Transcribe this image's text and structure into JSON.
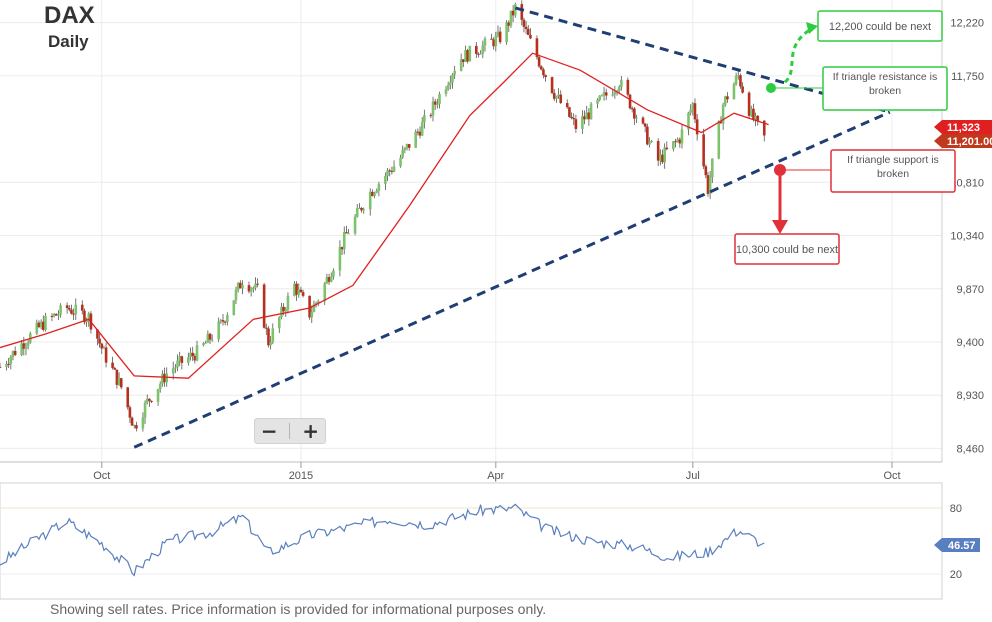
{
  "chart_data": [
    {
      "type": "candlestick",
      "title": "DAX",
      "subtitle": "Daily",
      "x_ticks": [
        "Oct",
        "2015",
        "Apr",
        "Jul",
        "Oct"
      ],
      "y_ticks": [
        8460,
        8930,
        9400,
        9870,
        10340,
        10810,
        11750,
        12220
      ],
      "y_tick_labels": [
        "8,460",
        "8,930",
        "9,400",
        "9,870",
        "10,340",
        "10,810",
        "11,750",
        "12,220"
      ],
      "ylim": [
        8340,
        12420
      ],
      "close_series": [
        [
          "2014-08-15",
          9180
        ],
        [
          "2014-08-25",
          9380
        ],
        [
          "2014-09-05",
          9580
        ],
        [
          "2014-09-15",
          9700
        ],
        [
          "2014-09-25",
          9620
        ],
        [
          "2014-10-02",
          9300
        ],
        [
          "2014-10-10",
          9000
        ],
        [
          "2014-10-16",
          8650
        ],
        [
          "2014-10-22",
          8870
        ],
        [
          "2014-11-01",
          9150
        ],
        [
          "2014-11-15",
          9320
        ],
        [
          "2014-11-25",
          9550
        ],
        [
          "2014-12-05",
          9950
        ],
        [
          "2014-12-12",
          9850
        ],
        [
          "2014-12-17",
          9400
        ],
        [
          "2014-12-29",
          9900
        ],
        [
          "2015-01-05",
          9650
        ],
        [
          "2015-01-10",
          9820
        ],
        [
          "2015-01-22",
          10350
        ],
        [
          "2015-02-01",
          10700
        ],
        [
          "2015-02-15",
          11000
        ],
        [
          "2015-03-01",
          11400
        ],
        [
          "2015-03-15",
          11900
        ],
        [
          "2015-03-25",
          12000
        ],
        [
          "2015-04-04",
          12100
        ],
        [
          "2015-04-10",
          12350
        ],
        [
          "2015-04-18",
          12000
        ],
        [
          "2015-04-28",
          11600
        ],
        [
          "2015-05-08",
          11300
        ],
        [
          "2015-05-18",
          11500
        ],
        [
          "2015-05-28",
          11700
        ],
        [
          "2015-06-05",
          11400
        ],
        [
          "2015-06-15",
          11000
        ],
        [
          "2015-06-25",
          11200
        ],
        [
          "2015-07-01",
          11500
        ],
        [
          "2015-07-08",
          10750
        ],
        [
          "2015-07-15",
          11500
        ],
        [
          "2015-07-22",
          11750
        ],
        [
          "2015-07-28",
          11400
        ],
        [
          "2015-08-03",
          11201
        ]
      ],
      "moving_average": [
        [
          "2014-08-15",
          9350
        ],
        [
          "2014-09-05",
          9470
        ],
        [
          "2014-09-25",
          9600
        ],
        [
          "2014-10-16",
          9100
        ],
        [
          "2014-11-10",
          9080
        ],
        [
          "2014-12-10",
          9600
        ],
        [
          "2015-01-05",
          9700
        ],
        [
          "2015-01-25",
          9900
        ],
        [
          "2015-02-20",
          10600
        ],
        [
          "2015-03-20",
          11400
        ],
        [
          "2015-04-05",
          11700
        ],
        [
          "2015-04-18",
          11950
        ],
        [
          "2015-05-10",
          11800
        ],
        [
          "2015-06-10",
          11450
        ],
        [
          "2015-07-05",
          11250
        ],
        [
          "2015-07-20",
          11420
        ],
        [
          "2015-08-05",
          11320
        ]
      ],
      "trendlines": [
        {
          "name": "resistance",
          "from": [
            "2015-04-10",
            12350
          ],
          "to": [
            "2015-09-30",
            11430
          ]
        },
        {
          "name": "support",
          "from": [
            "2014-10-16",
            8470
          ],
          "to": [
            "2015-09-30",
            11430
          ]
        }
      ],
      "price_labels": [
        {
          "text": "11,323",
          "value": 11323,
          "color": "#e02020"
        },
        {
          "text": "11,201.00",
          "value": 11201,
          "color": "#c0391c"
        }
      ],
      "annotations": [
        {
          "text": "12,200 could be next",
          "color": "#2ecc40"
        },
        {
          "text": "If triangle resistance is broken",
          "color": "#2ecc40"
        },
        {
          "text": "If triangle support is broken",
          "color": "#e0303a"
        },
        {
          "text": "10,300 could be next",
          "color": "#e0303a"
        }
      ],
      "colors": {
        "up": "#7dc36b",
        "down": "#b5311d",
        "ma": "#e02020",
        "trendline": "#1f3f74"
      }
    },
    {
      "type": "line",
      "name": "oscillator",
      "y_ticks": [
        20,
        80
      ],
      "ylim": [
        0,
        100
      ],
      "series": [
        [
          "2014-08-15",
          30
        ],
        [
          "2014-09-01",
          52
        ],
        [
          "2014-09-15",
          68
        ],
        [
          "2014-10-01",
          48
        ],
        [
          "2014-10-16",
          22
        ],
        [
          "2014-11-01",
          50
        ],
        [
          "2014-11-20",
          58
        ],
        [
          "2014-12-05",
          72
        ],
        [
          "2014-12-17",
          40
        ],
        [
          "2015-01-05",
          55
        ],
        [
          "2015-01-22",
          62
        ],
        [
          "2015-02-10",
          70
        ],
        [
          "2015-03-01",
          65
        ],
        [
          "2015-03-25",
          78
        ],
        [
          "2015-04-10",
          80
        ],
        [
          "2015-04-25",
          60
        ],
        [
          "2015-05-15",
          50
        ],
        [
          "2015-06-05",
          45
        ],
        [
          "2015-06-20",
          35
        ],
        [
          "2015-07-08",
          40
        ],
        [
          "2015-07-22",
          60
        ],
        [
          "2015-08-03",
          46.57
        ]
      ],
      "last_value_label": "46.57",
      "color": "#5a7fc0"
    }
  ],
  "footer": "Showing sell rates. Price information is provided for informational purposes only."
}
